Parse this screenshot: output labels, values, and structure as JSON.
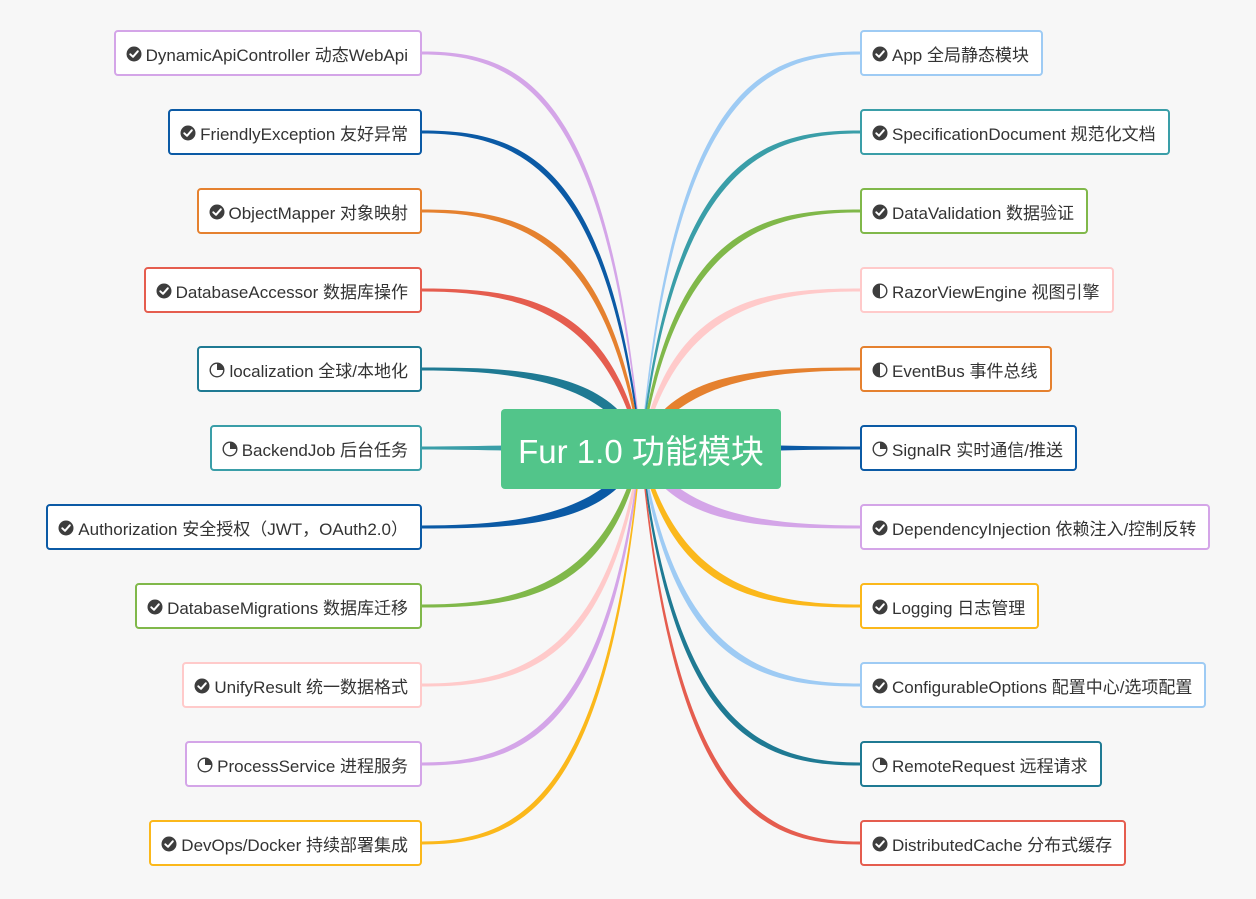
{
  "center": {
    "label": "Fur 1.0 功能模块",
    "color": "#52c58a"
  },
  "status_icons": {
    "done": "check-circle-icon",
    "partial": "pie-quarter-icon",
    "half": "half-circle-icon"
  },
  "left": [
    {
      "label": "DynamicApiController 动态WebApi",
      "status": "done",
      "color": "#d4a5e8"
    },
    {
      "label": "FriendlyException 友好异常",
      "status": "done",
      "color": "#0b5aa5"
    },
    {
      "label": "ObjectMapper 对象映射",
      "status": "done",
      "color": "#e5812f"
    },
    {
      "label": "DatabaseAccessor 数据库操作",
      "status": "done",
      "color": "#e55d4f"
    },
    {
      "label": "localization 全球/本地化",
      "status": "partial",
      "color": "#1f7a93"
    },
    {
      "label": "BackendJob 后台任务",
      "status": "partial",
      "color": "#3a9ea8"
    },
    {
      "label": "Authorization 安全授权（JWT，OAuth2.0）",
      "status": "done",
      "color": "#0b5aa5"
    },
    {
      "label": "DatabaseMigrations 数据库迁移",
      "status": "done",
      "color": "#80b84a"
    },
    {
      "label": "UnifyResult 统一数据格式",
      "status": "done",
      "color": "#ffcaca"
    },
    {
      "label": "ProcessService 进程服务",
      "status": "partial",
      "color": "#d4a5e8"
    },
    {
      "label": "DevOps/Docker 持续部署集成",
      "status": "done",
      "color": "#fbb81b"
    }
  ],
  "right": [
    {
      "label": "App 全局静态模块",
      "status": "done",
      "color": "#9ecbf4"
    },
    {
      "label": "SpecificationDocument 规范化文档",
      "status": "done",
      "color": "#3a9ea8"
    },
    {
      "label": "DataValidation 数据验证",
      "status": "done",
      "color": "#80b84a"
    },
    {
      "label": "RazorViewEngine 视图引擎",
      "status": "half",
      "color": "#ffcaca"
    },
    {
      "label": "EventBus 事件总线",
      "status": "half",
      "color": "#e5812f"
    },
    {
      "label": "SignalR 实时通信/推送",
      "status": "partial",
      "color": "#0b5aa5"
    },
    {
      "label": "DependencyInjection 依赖注入/控制反转",
      "status": "done",
      "color": "#d4a5e8"
    },
    {
      "label": "Logging 日志管理",
      "status": "done",
      "color": "#fbb81b"
    },
    {
      "label": "ConfigurableOptions 配置中心/选项配置",
      "status": "done",
      "color": "#9ecbf4"
    },
    {
      "label": "RemoteRequest 远程请求",
      "status": "partial",
      "color": "#1f7a93"
    },
    {
      "label": "DistributedCache 分布式缓存",
      "status": "done",
      "color": "#e55d4f"
    }
  ]
}
